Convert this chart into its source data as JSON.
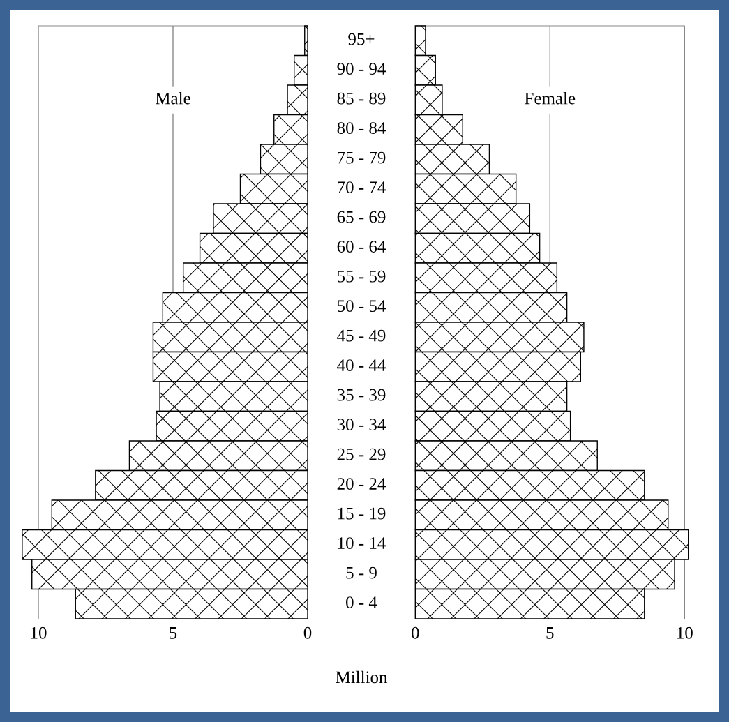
{
  "chart_data": [
    {
      "type": "bar",
      "orientation": "horizontal",
      "xlabel": "Million",
      "categories": [
        "95+",
        "90 - 94",
        "85 - 89",
        "80 - 84",
        "75 - 79",
        "70 - 74",
        "65 - 69",
        "60 - 64",
        "55 - 59",
        "50 - 54",
        "45 - 49",
        "40 - 44",
        "35 - 39",
        "30 - 34",
        "25 - 29",
        "20 - 24",
        "15 - 19",
        "10 - 14",
        "5 - 9",
        "0 - 4"
      ],
      "series": [
        {
          "name": "Male",
          "color": "#000000",
          "values": [
            0.11,
            0.5,
            0.75,
            1.25,
            1.75,
            2.5,
            3.5,
            4.0,
            4.62,
            5.38,
            5.74,
            5.74,
            5.49,
            5.62,
            6.62,
            7.88,
            9.5,
            10.6,
            10.24,
            8.62
          ]
        }
      ],
      "xlim": [
        10.6,
        0
      ],
      "xticks": [
        10,
        5,
        0
      ],
      "grid": "x",
      "legend": false
    },
    {
      "type": "bar",
      "orientation": "horizontal",
      "categories": [
        null,
        null,
        null,
        null,
        null,
        null,
        null,
        null,
        null,
        null,
        null,
        null,
        null,
        null,
        null,
        null,
        null,
        null,
        null,
        null
      ],
      "series": [
        {
          "name": "Female",
          "color": "#000000",
          "values": [
            0.38,
            0.75,
            1.0,
            1.76,
            2.75,
            3.74,
            4.25,
            4.62,
            5.26,
            5.63,
            6.26,
            6.14,
            5.63,
            5.76,
            6.76,
            8.51,
            9.39,
            10.14,
            9.63,
            8.51
          ]
        }
      ],
      "xlim": [
        0,
        10.14
      ],
      "xticks": [
        0,
        5,
        10
      ],
      "grid": "x",
      "legend": false,
      "tick_labels": "x"
    }
  ]
}
